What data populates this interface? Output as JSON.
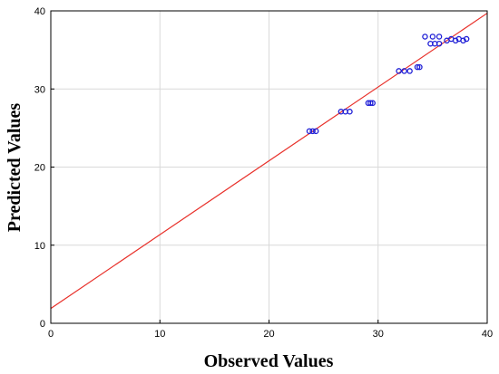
{
  "chart_data": {
    "type": "scatter",
    "title": "",
    "xlabel": "Observed Values",
    "ylabel": "Predicted Values",
    "xlim": [
      0,
      40
    ],
    "ylim": [
      0,
      40
    ],
    "xticks": [
      0,
      10,
      20,
      30,
      40
    ],
    "yticks": [
      0,
      10,
      20,
      30,
      40
    ],
    "grid": true,
    "colors": {
      "points": "#1f1fd6",
      "fit_line": "#e8302a",
      "grid": "#d9d9d9",
      "frame": "#000000"
    },
    "series": [
      {
        "points": [
          [
            23.7,
            24.6
          ],
          [
            24.0,
            24.6
          ],
          [
            24.3,
            24.6
          ],
          [
            26.6,
            27.1
          ],
          [
            27.0,
            27.1
          ],
          [
            27.4,
            27.1
          ],
          [
            29.1,
            28.2
          ],
          [
            29.3,
            28.2
          ],
          [
            29.5,
            28.2
          ],
          [
            31.9,
            32.3
          ],
          [
            32.4,
            32.3
          ],
          [
            32.9,
            32.3
          ],
          [
            33.6,
            32.8
          ],
          [
            33.8,
            32.8
          ],
          [
            34.3,
            36.7
          ],
          [
            34.8,
            35.8
          ],
          [
            35.0,
            36.7
          ],
          [
            35.2,
            35.8
          ],
          [
            35.6,
            35.8
          ],
          [
            35.6,
            36.7
          ],
          [
            36.3,
            36.2
          ],
          [
            36.7,
            36.4
          ],
          [
            37.1,
            36.2
          ],
          [
            37.4,
            36.4
          ],
          [
            37.8,
            36.2
          ],
          [
            38.1,
            36.4
          ]
        ]
      }
    ],
    "fit_line": {
      "intercept": 1.9,
      "slope": 0.945
    }
  }
}
